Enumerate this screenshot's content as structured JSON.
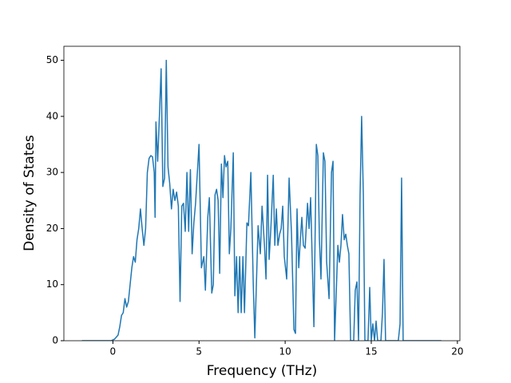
{
  "chart_data": {
    "type": "line",
    "x_label": "Frequency (THz)",
    "y_label": "Density of States",
    "xlim": [
      -2.845,
      20.145
    ],
    "ylim": [
      0,
      52.5
    ],
    "xticks": [
      0,
      5,
      10,
      15,
      20
    ],
    "yticks": [
      0,
      10,
      20,
      30,
      40,
      50
    ],
    "series": [
      {
        "color": "#1f77b4",
        "x": [
          -1.8,
          -0.1,
          0.1,
          0.3,
          0.4,
          0.5,
          0.6,
          0.7,
          0.8,
          0.9,
          1.0,
          1.1,
          1.2,
          1.3,
          1.4,
          1.5,
          1.6,
          1.7,
          1.8,
          1.9,
          2.0,
          2.1,
          2.2,
          2.3,
          2.4,
          2.45,
          2.5,
          2.6,
          2.7,
          2.8,
          2.9,
          3.0,
          3.1,
          3.2,
          3.3,
          3.4,
          3.5,
          3.6,
          3.7,
          3.8,
          3.9,
          4.0,
          4.1,
          4.2,
          4.3,
          4.4,
          4.5,
          4.6,
          4.7,
          4.8,
          5.0,
          5.14,
          5.28,
          5.37,
          5.51,
          5.6,
          5.74,
          5.83,
          5.93,
          6.02,
          6.11,
          6.2,
          6.3,
          6.39,
          6.48,
          6.57,
          6.67,
          6.76,
          6.85,
          6.99,
          7.08,
          7.18,
          7.27,
          7.36,
          7.45,
          7.55,
          7.64,
          7.78,
          7.87,
          8.01,
          8.15,
          8.24,
          8.33,
          8.43,
          8.56,
          8.66,
          8.8,
          8.89,
          8.98,
          9.07,
          9.17,
          9.31,
          9.4,
          9.49,
          9.58,
          9.68,
          9.77,
          9.86,
          9.95,
          10.09,
          10.23,
          10.37,
          10.51,
          10.6,
          10.69,
          10.79,
          10.88,
          10.97,
          11.06,
          11.16,
          11.3,
          11.39,
          11.48,
          11.67,
          11.81,
          11.9,
          11.99,
          12.08,
          12.22,
          12.31,
          12.41,
          12.55,
          12.69,
          12.78,
          12.87,
          13.06,
          13.15,
          13.24,
          13.33,
          13.43,
          13.52,
          13.61,
          13.7,
          13.8,
          13.98,
          14.07,
          14.17,
          14.26,
          14.35,
          14.44,
          14.54,
          14.63,
          14.81,
          14.91,
          15.0,
          15.09,
          15.19,
          15.28,
          15.37,
          15.56,
          15.65,
          15.74,
          15.83,
          16.57,
          16.67,
          16.76,
          16.85,
          19.07
        ],
        "values": [
          0,
          0,
          0.3,
          1,
          2.5,
          4.5,
          5,
          7.5,
          6,
          7,
          10,
          13,
          15,
          14,
          18,
          20,
          23.5,
          20,
          17,
          20,
          30,
          32.5,
          33,
          32.8,
          30,
          22,
          39,
          32,
          40,
          48.5,
          27.5,
          29,
          50,
          31,
          28,
          23.5,
          27,
          25,
          26.5,
          24,
          7,
          24,
          24.5,
          19.5,
          30,
          19.5,
          30.5,
          15.5,
          21,
          24.5,
          35,
          13,
          15,
          9,
          22,
          25.5,
          8.5,
          10,
          26,
          27,
          25,
          12,
          31.5,
          25.5,
          33,
          31,
          32,
          15.5,
          20,
          33.5,
          8,
          15,
          5,
          15,
          5,
          15,
          5,
          21,
          20.5,
          30,
          10,
          0.5,
          10,
          20.5,
          15.5,
          24,
          17,
          11,
          29.5,
          14.5,
          20,
          29.5,
          17,
          23.5,
          17,
          19,
          20,
          24,
          15,
          11,
          29,
          19,
          2,
          1.3,
          23.5,
          13,
          18,
          22,
          17,
          16.5,
          24.5,
          20,
          25.5,
          2.5,
          35,
          33,
          18,
          11,
          33.5,
          32,
          14,
          7.5,
          30,
          32,
          0,
          17,
          14,
          17,
          22.5,
          18,
          19,
          17,
          15.5,
          0,
          0,
          9,
          10.5,
          0,
          26,
          40,
          26,
          0,
          0,
          9.5,
          0,
          3,
          0,
          3.5,
          0,
          0,
          5,
          14.5,
          0,
          0,
          3,
          29,
          0,
          0
        ]
      }
    ]
  }
}
